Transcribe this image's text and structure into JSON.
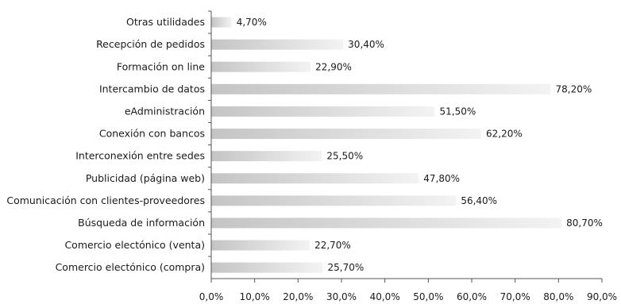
{
  "chart_data": {
    "type": "bar",
    "orientation": "horizontal",
    "title": "",
    "xlabel": "",
    "ylabel": "",
    "xlim": [
      0,
      90
    ],
    "xticks": [
      "0,0%",
      "10,0%",
      "20,0%",
      "30,0%",
      "40,0%",
      "50,0%",
      "60,0%",
      "70,0%",
      "80,0%",
      "90,0%"
    ],
    "grid": false,
    "legend": "none",
    "bar_color_start": "#c4c4c4",
    "bar_color_end": "#f3f3f3",
    "categories": [
      "Otras utilidades",
      "Recepción de pedidos",
      "Formación on line",
      "Intercambio de datos",
      "eAdministración",
      "Conexión con bancos",
      "Interconexión entre sedes",
      "Publicidad (página web)",
      "Comunicación con clientes-proveedores",
      "Búsqueda de información",
      "Comercio electónico (venta)",
      "Comercio electónico (compra)"
    ],
    "values": [
      4.7,
      30.4,
      22.9,
      78.2,
      51.5,
      62.2,
      25.5,
      47.8,
      56.4,
      80.7,
      22.7,
      25.7
    ],
    "value_labels": [
      "4,70%",
      "30,40%",
      "22,90%",
      "78,20%",
      "51,50%",
      "62,20%",
      "25,50%",
      "47,80%",
      "56,40%",
      "80,70%",
      "22,70%",
      "25,70%"
    ]
  }
}
